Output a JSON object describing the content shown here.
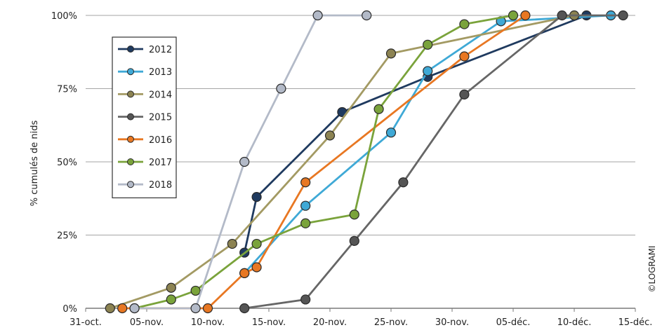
{
  "chart_data": {
    "type": "line",
    "title": "",
    "ylabel": "% cumulés de nids",
    "credit": "©LOGRAMI",
    "ylim": [
      0,
      100
    ],
    "y_ticks": [
      "0%",
      "25%",
      "50%",
      "75%",
      "100%"
    ],
    "x_ticks": [
      "31-oct.",
      "05-nov.",
      "10-nov.",
      "15-nov.",
      "20-nov.",
      "25-nov.",
      "30-nov.",
      "05-déc.",
      "10-déc.",
      "15-déc."
    ],
    "x_tick_dates": [
      "10-31",
      "11-05",
      "11-10",
      "11-15",
      "11-20",
      "11-25",
      "11-30",
      "12-05",
      "12-10",
      "12-15"
    ],
    "grid": true,
    "legend_position": "top-left",
    "series": [
      {
        "name": "2012",
        "color": "#1f3a5f",
        "marker": "#1f3a5f",
        "points": [
          [
            "11-13",
            19
          ],
          [
            "11-14",
            38
          ],
          [
            "11-21",
            67
          ],
          [
            "11-28",
            79
          ],
          [
            "12-11",
            100
          ]
        ]
      },
      {
        "name": "2013",
        "color": "#3fa9d6",
        "marker": "#3fa9d6",
        "points": [
          [
            "11-13",
            12
          ],
          [
            "11-18",
            35
          ],
          [
            "11-25",
            60
          ],
          [
            "11-28",
            81
          ],
          [
            "12-04",
            98
          ],
          [
            "12-13",
            100
          ]
        ]
      },
      {
        "name": "2014",
        "color": "#a39a63",
        "marker": "#8c8352",
        "points": [
          [
            "11-02",
            0
          ],
          [
            "11-07",
            7
          ],
          [
            "11-12",
            22
          ],
          [
            "11-20",
            59
          ],
          [
            "11-25",
            87
          ],
          [
            "12-10",
            100
          ]
        ]
      },
      {
        "name": "2015",
        "color": "#666666",
        "marker": "#555555",
        "points": [
          [
            "11-13",
            0
          ],
          [
            "11-18",
            3
          ],
          [
            "11-22",
            23
          ],
          [
            "11-26",
            43
          ],
          [
            "12-01",
            73
          ],
          [
            "12-09",
            100
          ],
          [
            "12-14",
            100
          ]
        ]
      },
      {
        "name": "2016",
        "color": "#e87722",
        "marker": "#e87722",
        "points": [
          [
            "11-03",
            0
          ],
          [
            "11-10",
            0
          ],
          [
            "11-13",
            12
          ],
          [
            "11-14",
            14
          ],
          [
            "11-18",
            43
          ],
          [
            "11-31",
            86
          ],
          [
            "12-06",
            100
          ]
        ]
      },
      {
        "name": "2017",
        "color": "#7aa33b",
        "marker": "#7aa33b",
        "points": [
          [
            "11-04",
            0
          ],
          [
            "11-07",
            3
          ],
          [
            "11-09",
            6
          ],
          [
            "11-14",
            22
          ],
          [
            "11-18",
            29
          ],
          [
            "11-22",
            32
          ],
          [
            "11-24",
            68
          ],
          [
            "11-28",
            90
          ],
          [
            "12-01",
            97
          ],
          [
            "12-05",
            100
          ]
        ]
      },
      {
        "name": "2018",
        "color": "#b3bac8",
        "marker": "#b3bac8",
        "points": [
          [
            "11-04",
            0
          ],
          [
            "11-09",
            0
          ],
          [
            "11-13",
            50
          ],
          [
            "11-16",
            75
          ],
          [
            "11-19",
            100
          ],
          [
            "11-23",
            100
          ]
        ]
      }
    ]
  }
}
